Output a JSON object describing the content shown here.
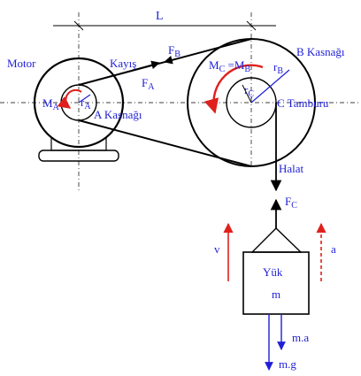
{
  "dimension": {
    "label": "L"
  },
  "labels": {
    "motor": "Motor",
    "belt": "Kayış",
    "pulley_a": "A Kasnağı",
    "pulley_b": "B Kasnağı",
    "drum": "C Tamburu",
    "rope": "Halat",
    "load_name": "Yük",
    "load_mass": "m"
  },
  "forces": {
    "fb": {
      "main": "F",
      "sub": "B"
    },
    "fa": {
      "main": "F",
      "sub": "A"
    },
    "fc": {
      "main": "F",
      "sub": "C"
    }
  },
  "moments": {
    "ma": {
      "main": "M",
      "sub": "A"
    },
    "mc_eq": {
      "m1": "M",
      "s1": "C",
      "eq": " =",
      "m2": "M",
      "s2": "B"
    }
  },
  "radii": {
    "ra": {
      "main": "r",
      "sub": "A"
    },
    "rb": {
      "main": "r",
      "sub": "B"
    },
    "rc": {
      "main": "r",
      "sub": "Ç"
    }
  },
  "kinematics": {
    "velocity": "v",
    "acceleration": "a"
  },
  "load_forces": {
    "inertia": "m.a",
    "weight": "m.g"
  },
  "colors": {
    "label": "#1f1fd6",
    "accent": "#e0201c",
    "ink": "#000000"
  }
}
